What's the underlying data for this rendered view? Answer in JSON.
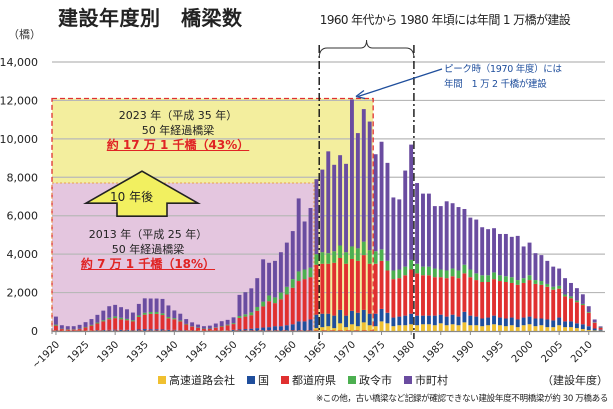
{
  "header": {
    "title": "建設年度別　橋梁数",
    "unit": "（橋）",
    "top_note": "1960 年代から 1980 年頃には年間 1 万橋が建設",
    "peak_note_line1": "ピーク時（1970 年度）には",
    "peak_note_line2": "年間　1 万 2 千橋が建設"
  },
  "boxes": {
    "future": {
      "line1": "2023 年（平成 35 年）",
      "line2": "50 年経過橋梁",
      "line3": "約 17 万 1 千橋（43%）"
    },
    "current": {
      "line1": "2013 年（平成 25 年）",
      "line2": "50 年経過橋梁",
      "line3": "約 7 万 1 千橋（18%）"
    },
    "arrow_label": "10 年後"
  },
  "legend": {
    "items": [
      {
        "label": "高速道路会社",
        "color": "#f0c030"
      },
      {
        "label": "国",
        "color": "#1f4e9c"
      },
      {
        "label": "都道府県",
        "color": "#e03030"
      },
      {
        "label": "政令市",
        "color": "#4caf50"
      },
      {
        "label": "市町村",
        "color": "#6a4ca0"
      }
    ],
    "x_unit": "（建設年度）"
  },
  "footnote": "※この他，古い橋梁など記録が確認できない建設年度不明橋梁が約 30 万橋ある",
  "colors": {
    "future_box": "#f3ee9e",
    "current_box": "#e4c6df",
    "dashed_red": "#e03030",
    "arrow_fill": "#f2f060",
    "grid": "#b8b8b8",
    "annotation_blue": "#1f4e9c"
  },
  "chart_data": {
    "type": "bar",
    "stacked": true,
    "title": "建設年度別　橋梁数",
    "xlabel": "（建設年度）",
    "ylabel": "（橋）",
    "ylim": [
      0,
      14000
    ],
    "yticks": [
      "0",
      "2,000",
      "4,000",
      "6,000",
      "8,000",
      "10,000",
      "12,000",
      "14,000"
    ],
    "ytick_values": [
      0,
      2000,
      4000,
      6000,
      8000,
      10000,
      12000,
      14000
    ],
    "xtick_labels": [
      "~1920",
      "1925",
      "1930",
      "1935",
      "1940",
      "1945",
      "1950",
      "1955",
      "1960",
      "1965",
      "1970",
      "1975",
      "1980",
      "1985",
      "1990",
      "1995",
      "2000",
      "2005",
      "2010"
    ],
    "xtick_years": [
      1920,
      1925,
      1930,
      1935,
      1940,
      1945,
      1950,
      1955,
      1960,
      1965,
      1970,
      1975,
      1980,
      1985,
      1990,
      1995,
      2000,
      2005,
      2010
    ],
    "grid": true,
    "legend_position": "bottom",
    "years": [
      1920,
      1921,
      1922,
      1923,
      1924,
      1925,
      1926,
      1927,
      1928,
      1929,
      1930,
      1931,
      1932,
      1933,
      1934,
      1935,
      1936,
      1937,
      1938,
      1939,
      1940,
      1941,
      1942,
      1943,
      1944,
      1945,
      1946,
      1947,
      1948,
      1949,
      1950,
      1951,
      1952,
      1953,
      1954,
      1955,
      1956,
      1957,
      1958,
      1959,
      1960,
      1961,
      1962,
      1963,
      1964,
      1965,
      1966,
      1967,
      1968,
      1969,
      1970,
      1971,
      1972,
      1973,
      1974,
      1975,
      1976,
      1977,
      1978,
      1979,
      1980,
      1981,
      1982,
      1983,
      1984,
      1985,
      1986,
      1987,
      1988,
      1989,
      1990,
      1991,
      1992,
      1993,
      1994,
      1995,
      1996,
      1997,
      1998,
      1999,
      2000,
      2001,
      2002,
      2003,
      2004,
      2005,
      2006,
      2007,
      2008,
      2009,
      2010,
      2011,
      2012
    ],
    "series": [
      {
        "name": "高速道路会社",
        "values": [
          0,
          0,
          0,
          0,
          0,
          0,
          0,
          0,
          0,
          0,
          0,
          0,
          0,
          0,
          0,
          0,
          0,
          0,
          0,
          0,
          0,
          0,
          0,
          0,
          0,
          0,
          0,
          0,
          0,
          0,
          0,
          0,
          0,
          0,
          0,
          0,
          0,
          0,
          0,
          0,
          0,
          0,
          0,
          0,
          150,
          200,
          250,
          150,
          400,
          200,
          350,
          250,
          450,
          300,
          250,
          500,
          400,
          250,
          300,
          300,
          350,
          300,
          350,
          350,
          300,
          400,
          300,
          350,
          300,
          450,
          300,
          300,
          250,
          300,
          350,
          300,
          250,
          300,
          200,
          300,
          350,
          250,
          300,
          200,
          200,
          300,
          200,
          200,
          150,
          100,
          50,
          30,
          20
        ]
      },
      {
        "name": "国",
        "values": [
          30,
          20,
          15,
          15,
          20,
          30,
          30,
          40,
          50,
          60,
          70,
          60,
          60,
          50,
          80,
          100,
          90,
          90,
          80,
          60,
          60,
          50,
          40,
          30,
          20,
          20,
          20,
          20,
          30,
          40,
          60,
          80,
          100,
          120,
          150,
          180,
          200,
          250,
          250,
          300,
          350,
          500,
          500,
          600,
          700,
          700,
          650,
          650,
          700,
          600,
          700,
          700,
          650,
          600,
          650,
          650,
          550,
          450,
          450,
          500,
          550,
          500,
          450,
          450,
          500,
          450,
          450,
          500,
          450,
          550,
          500,
          450,
          400,
          400,
          450,
          400,
          400,
          400,
          400,
          400,
          400,
          400,
          350,
          400,
          350,
          400,
          300,
          300,
          250,
          250,
          200,
          100,
          50
        ]
      },
      {
        "name": "都道府県",
        "values": [
          250,
          80,
          60,
          60,
          80,
          150,
          250,
          350,
          450,
          550,
          600,
          550,
          500,
          450,
          650,
          750,
          800,
          800,
          750,
          600,
          550,
          450,
          300,
          200,
          150,
          100,
          100,
          150,
          200,
          250,
          300,
          600,
          650,
          700,
          900,
          1100,
          1350,
          1200,
          1400,
          1600,
          1900,
          2100,
          2200,
          2200,
          2600,
          2600,
          2600,
          2750,
          2700,
          2700,
          2700,
          2700,
          2850,
          2600,
          2600,
          2500,
          2200,
          2000,
          2000,
          2100,
          2300,
          2200,
          2100,
          2100,
          2000,
          1950,
          2000,
          2000,
          2000,
          2000,
          2000,
          1900,
          1900,
          1850,
          1900,
          1900,
          1900,
          1800,
          1800,
          1800,
          1900,
          1800,
          1750,
          1700,
          1600,
          1500,
          1300,
          1200,
          1100,
          1000,
          700,
          300,
          100
        ]
      },
      {
        "name": "政令市",
        "values": [
          50,
          20,
          15,
          15,
          20,
          30,
          40,
          50,
          60,
          80,
          90,
          80,
          70,
          60,
          80,
          100,
          100,
          100,
          90,
          70,
          60,
          50,
          30,
          20,
          15,
          10,
          10,
          20,
          30,
          40,
          50,
          100,
          120,
          150,
          200,
          250,
          300,
          300,
          350,
          400,
          450,
          500,
          500,
          500,
          550,
          600,
          550,
          600,
          650,
          600,
          650,
          650,
          700,
          700,
          650,
          600,
          500,
          450,
          450,
          450,
          500,
          500,
          450,
          450,
          450,
          400,
          400,
          400,
          400,
          450,
          400,
          350,
          350,
          350,
          350,
          300,
          300,
          300,
          250,
          250,
          250,
          200,
          200,
          150,
          150,
          150,
          100,
          100,
          80,
          60,
          40,
          20,
          10
        ]
      },
      {
        "name": "市町村",
        "values": [
          420,
          180,
          160,
          160,
          200,
          250,
          300,
          400,
          500,
          600,
          600,
          550,
          500,
          400,
          600,
          750,
          700,
          700,
          750,
          600,
          400,
          350,
          250,
          200,
          150,
          120,
          150,
          200,
          250,
          250,
          300,
          1100,
          1150,
          1250,
          1500,
          2200,
          1700,
          1900,
          2100,
          2300,
          2500,
          3800,
          2500,
          3100,
          3900,
          4300,
          5300,
          4500,
          4700,
          4600,
          7650,
          6000,
          6900,
          6700,
          5050,
          5600,
          5100,
          3800,
          3650,
          5000,
          6000,
          4200,
          3800,
          3800,
          3250,
          3300,
          3600,
          3400,
          3300,
          2900,
          2700,
          2800,
          2500,
          2400,
          2300,
          2150,
          2200,
          2100,
          2300,
          1650,
          1700,
          1400,
          1350,
          1200,
          1050,
          900,
          850,
          700,
          650,
          500,
          300,
          150,
          60
        ]
      }
    ],
    "annotations": [
      {
        "text": "1960 年代から 1980 年頃には年間 1 万橋が建設",
        "x_from": 1965,
        "x_to": 1981
      },
      {
        "text": "ピーク時（1970 年度）には 年間 1 万 2 千橋が建設",
        "x": 1970,
        "y": 12000
      },
      {
        "text": "2023 年（平成 35 年）50 年経過橋梁 約 17 万 1 千橋（43%）",
        "x_to": 1973,
        "y_top": 12100
      },
      {
        "text": "2013 年（平成 25 年）50 年経過橋梁 約 7 万 1 千橋（18%）",
        "x_to": 1963,
        "y_top": 7700
      }
    ]
  }
}
